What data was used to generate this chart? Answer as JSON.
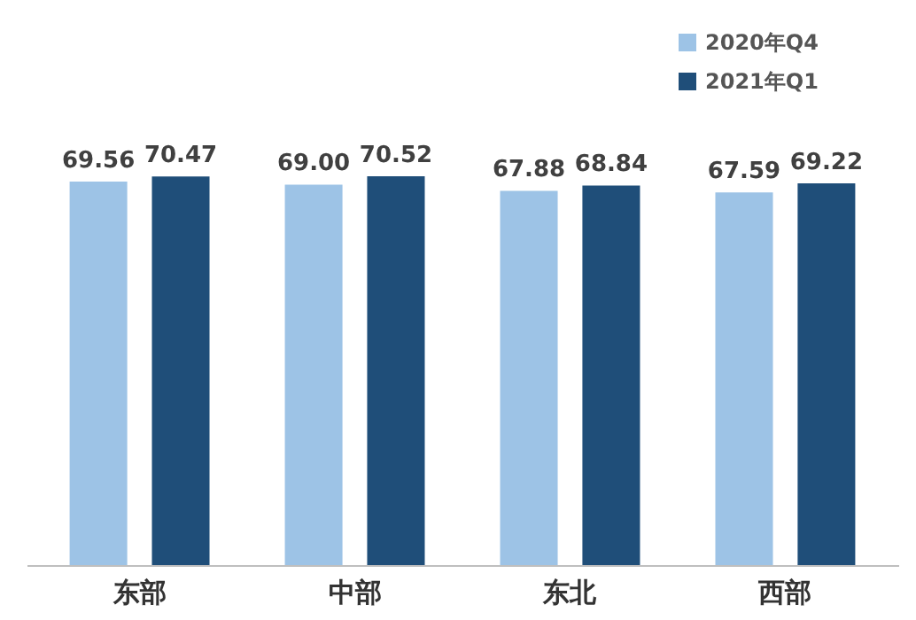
{
  "chart_data": {
    "type": "bar",
    "categories": [
      "东部",
      "中部",
      "东北",
      "西部"
    ],
    "series": [
      {
        "name": "2020年Q4",
        "color": "#9dc3e6",
        "values": [
          69.56,
          69.0,
          67.88,
          67.59
        ],
        "value_labels": [
          "69.56",
          "69.00",
          "67.88",
          "67.59"
        ]
      },
      {
        "name": "2021年Q1",
        "color": "#1f4e79",
        "values": [
          70.47,
          70.52,
          68.84,
          69.22
        ],
        "value_labels": [
          "70.47",
          "70.52",
          "68.84",
          "69.22"
        ]
      }
    ],
    "legend": "top right"
  }
}
